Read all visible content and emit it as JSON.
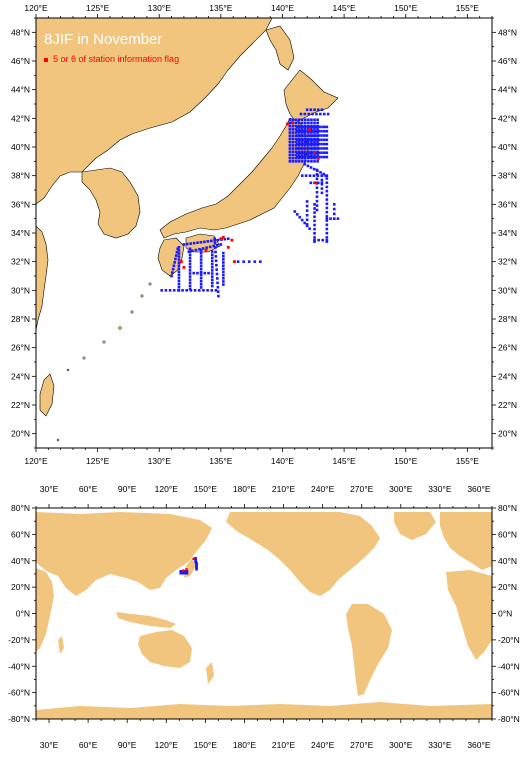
{
  "colors": {
    "land": "#f2c57f",
    "ocean": "#ffffff",
    "station": "#1a1aff",
    "flag": "#ff0000",
    "frame": "#000000"
  },
  "top_map": {
    "title": "8JIF in November",
    "legend_label": "5 or 6 of station information flag",
    "lon_range": [
      120,
      157
    ],
    "lat_range": [
      19,
      49
    ],
    "lon_ticks": [
      "120°E",
      "125°E",
      "130°E",
      "135°E",
      "140°E",
      "145°E",
      "150°E",
      "155°E"
    ],
    "lat_ticks": [
      "20°N",
      "22°N",
      "24°N",
      "26°N",
      "28°N",
      "30°N",
      "32°N",
      "34°N",
      "36°N",
      "38°N",
      "40°N",
      "42°N",
      "44°N",
      "46°N",
      "48°N"
    ]
  },
  "bottom_map": {
    "lon_range": [
      20,
      370
    ],
    "lat_range": [
      -80,
      80
    ],
    "lon_ticks": [
      "30°E",
      "60°E",
      "90°E",
      "120°E",
      "150°E",
      "180°E",
      "210°E",
      "240°E",
      "270°E",
      "300°E",
      "330°E",
      "360°E"
    ],
    "lat_ticks": [
      "80°N",
      "60°N",
      "40°N",
      "20°N",
      "0°N",
      "-20°N",
      "-40°N",
      "-60°N",
      "-80°N"
    ]
  }
}
